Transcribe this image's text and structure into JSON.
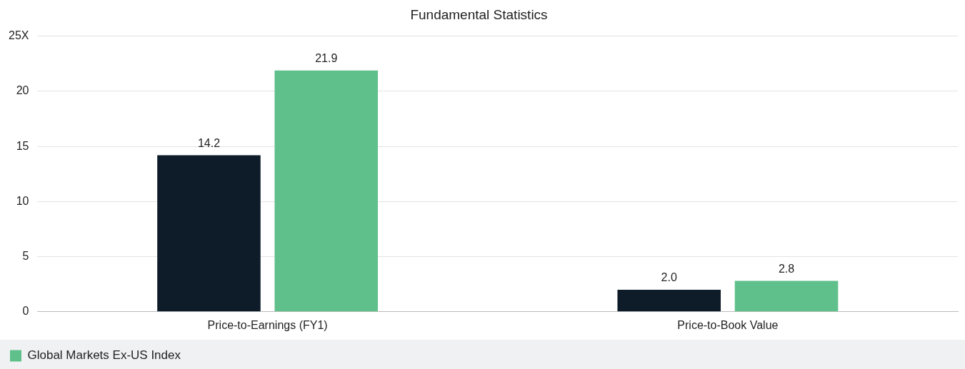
{
  "chart_data": {
    "type": "bar",
    "title": "Fundamental Statistics",
    "categories": [
      "Price-to-Earnings (FY1)",
      "Price-to-Book Value"
    ],
    "series": [
      {
        "color": "#0e1b29",
        "values": [
          14.2,
          2.0
        ],
        "value_labels": [
          "14.2",
          "2.0"
        ]
      },
      {
        "name": "Global Markets Ex-US Index",
        "color": "#5fc08b",
        "values": [
          21.9,
          2.8
        ],
        "value_labels": [
          "21.9",
          "2.8"
        ]
      }
    ],
    "ylim": [
      0,
      25
    ],
    "yticks": [
      0,
      5,
      10,
      15,
      20,
      {
        "value": 25,
        "label": "25X"
      }
    ],
    "grid": "y",
    "legend": "bottom"
  }
}
